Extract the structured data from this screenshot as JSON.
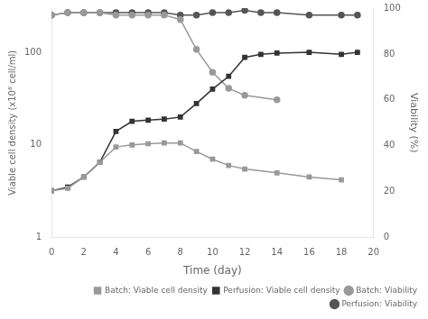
{
  "chart_data": {
    "type": "line",
    "xlabel": "Time (day)",
    "ylabel": "Viable cell density (x10⁶ cell/ml)",
    "y2label": "Viability (%)",
    "xlim": [
      0,
      20
    ],
    "xticks": [
      0,
      2,
      4,
      6,
      8,
      10,
      12,
      14,
      16,
      18,
      20
    ],
    "ylim": [
      1,
      300
    ],
    "yticks": [
      1,
      10,
      100
    ],
    "y2lim": [
      0,
      100
    ],
    "y2ticks": [
      0,
      20,
      40,
      60,
      80,
      100
    ],
    "log": "y",
    "grid": false,
    "legend": "lower right",
    "series": [
      {
        "name": "Batch: Viable cell density",
        "color": "#999999",
        "marker": "square",
        "x": [
          0,
          1,
          2,
          3,
          4,
          5,
          6,
          7,
          8,
          9,
          10,
          11,
          12,
          14,
          16,
          18
        ],
        "values": [
          3.2,
          3.4,
          4.5,
          6.5,
          9.5,
          10.0,
          10.3,
          10.5,
          10.5,
          8.5,
          7.0,
          6.0,
          5.5,
          5.0,
          4.5,
          4.2
        ]
      },
      {
        "name": "Perfusion: Viable cell density",
        "color": "#333333",
        "marker": "square",
        "x": [
          0,
          1,
          2,
          3,
          4,
          5,
          6,
          7,
          8,
          9,
          10,
          11,
          12,
          13,
          14,
          16,
          18,
          19
        ],
        "values": [
          3.2,
          3.5,
          4.5,
          6.5,
          14.0,
          18.0,
          18.5,
          19.0,
          20.0,
          28.0,
          40.0,
          55.0,
          88.0,
          95.0,
          98.0,
          100.0,
          95.0,
          100.0
        ]
      },
      {
        "name": "Batch: Viability",
        "color": "#999999",
        "marker": "circle",
        "axis": "y2",
        "x": [
          0,
          1,
          2,
          3,
          4,
          5,
          6,
          7,
          8,
          9,
          10,
          11,
          12,
          14
        ],
        "values": [
          97,
          98,
          98,
          98,
          97,
          97,
          97,
          97,
          95,
          82,
          72,
          65,
          62,
          60
        ]
      },
      {
        "name": "Perfusion: Viability",
        "color": "#555555",
        "marker": "circle",
        "axis": "y2",
        "x": [
          0,
          1,
          2,
          3,
          4,
          5,
          6,
          7,
          8,
          9,
          10,
          11,
          12,
          13,
          14,
          16,
          18,
          19
        ],
        "values": [
          97,
          98,
          98,
          98,
          98,
          98,
          98,
          98,
          97,
          97,
          98,
          98,
          99,
          98,
          98,
          97,
          97,
          97
        ]
      }
    ]
  }
}
